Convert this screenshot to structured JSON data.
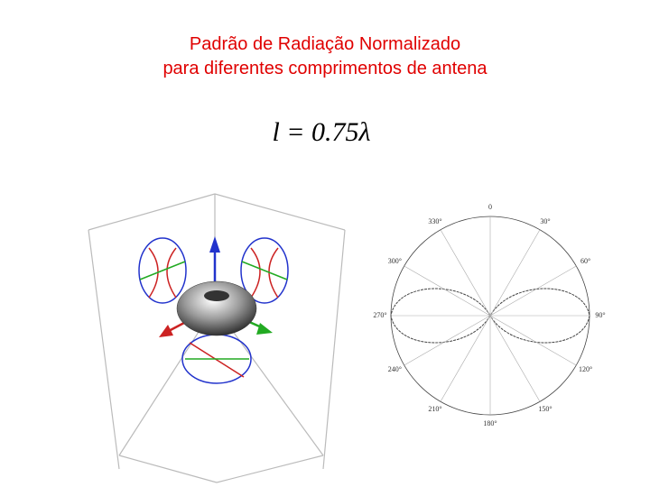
{
  "title": {
    "line1": "Padrão de Radiação Normalizado",
    "line2": "para diferentes comprimentos de antena"
  },
  "formula": "l = 0.75λ",
  "polar_labels": [
    "0",
    "30°",
    "60°",
    "90°",
    "120°",
    "150°",
    "180°",
    "210°",
    "240°",
    "270°",
    "300°",
    "330°"
  ]
}
